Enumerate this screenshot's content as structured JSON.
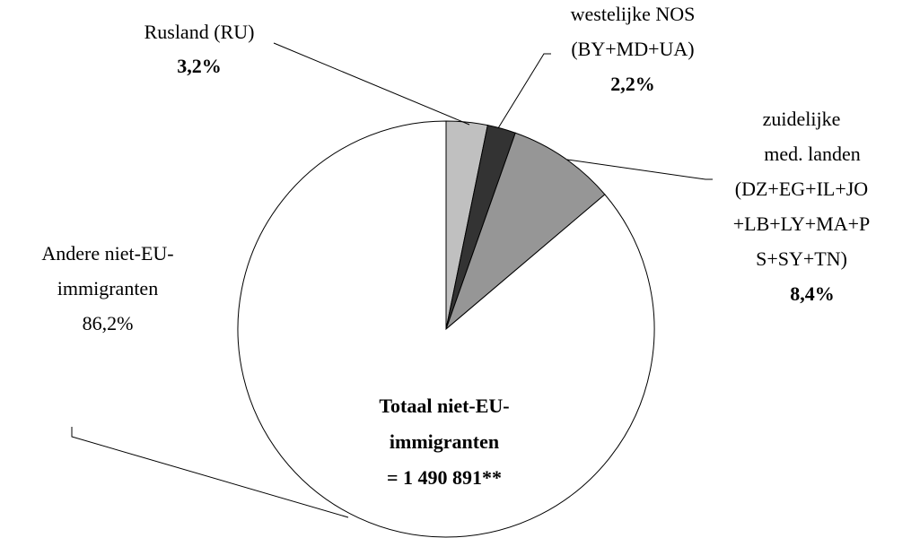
{
  "chart_data": {
    "type": "pie",
    "categories": [
      [
        "Rusland  (RU)"
      ],
      [
        "westelijke NOS",
        "(BY+MD+UA)"
      ],
      [
        "zuidelijke",
        "med. landen",
        "(DZ+EG+IL+JO",
        "+LB+LY+MA+P",
        "S+SY+TN)"
      ],
      [
        "Andere niet-EU-",
        "immigranten"
      ]
    ],
    "values": [
      3.2,
      2.2,
      8.4,
      86.2
    ],
    "value_labels": [
      "3,2%",
      "2,2%",
      "8,4%",
      "86,2%"
    ],
    "colors": [
      "#c0c0c0",
      "#333333",
      "#969696",
      "#ffffff"
    ],
    "annotation": [
      "Totaal niet-EU-",
      "immigranten",
      "= 1 490 891**"
    ]
  }
}
